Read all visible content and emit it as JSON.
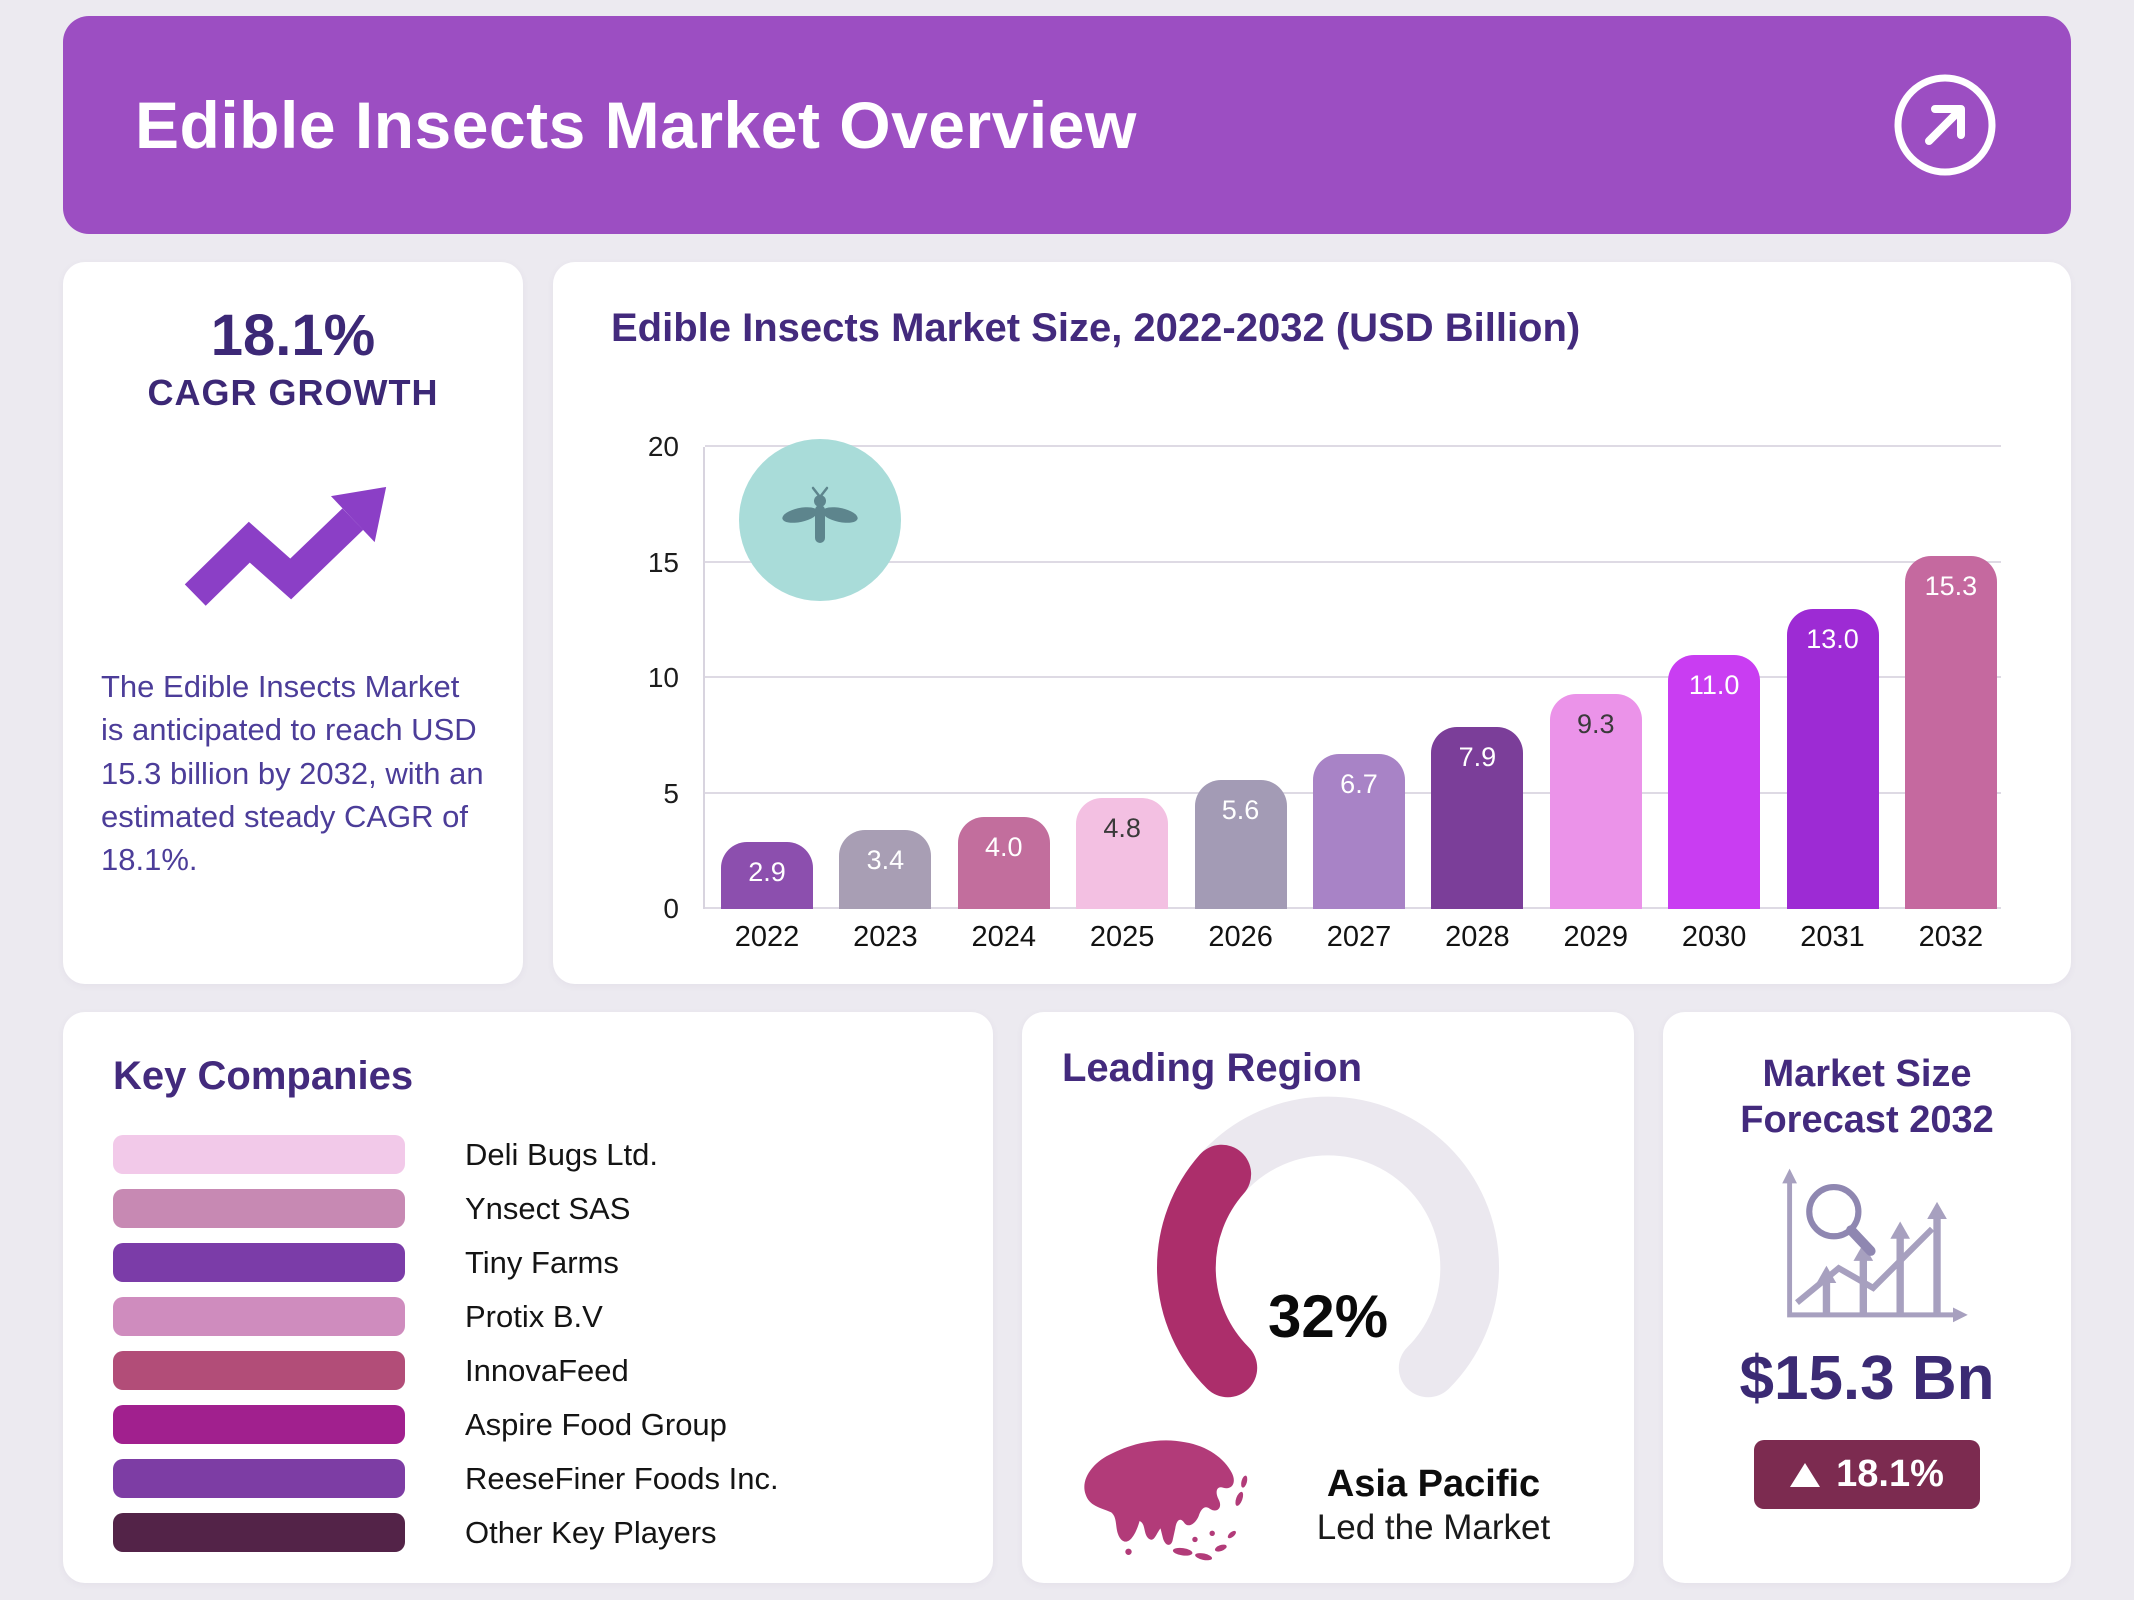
{
  "header": {
    "title": "Edible Insects Market Overview",
    "brand_color": "#9c4ec2",
    "action_icon": "arrow-up-right-icon"
  },
  "cagr_card": {
    "value": "18.1%",
    "label": "CAGR GROWTH",
    "accent_color": "#8b3fc6",
    "trend_icon": "trend-up-arrow-icon",
    "description": "The Edible Insects Market is anticipated to reach USD 15.3 billion by 2032, with an estimated steady CAGR of 18.1%."
  },
  "chart_card": {
    "title": "Edible Insects Market Size, 2022-2032 (USD Billion)",
    "insect_icon": "insect-icon"
  },
  "chart_data": {
    "type": "bar",
    "title": "Edible Insects Market Size, 2022-2032 (USD Billion)",
    "categories": [
      "2022",
      "2023",
      "2024",
      "2025",
      "2026",
      "2027",
      "2028",
      "2029",
      "2030",
      "2031",
      "2032"
    ],
    "values": [
      2.9,
      3.4,
      4.0,
      4.8,
      5.6,
      6.7,
      7.9,
      9.3,
      11.0,
      13.0,
      15.3
    ],
    "value_labels": [
      "2.9",
      "3.4",
      "4.0",
      "4.8",
      "5.6",
      "6.7",
      "7.9",
      "9.3",
      "11.0",
      "13.0",
      "15.3"
    ],
    "bar_colors": [
      "#8c4fae",
      "#a89eb4",
      "#c26e9d",
      "#f3c0e2",
      "#a39bb5",
      "#a883c6",
      "#7b3e99",
      "#eb93e9",
      "#c93df2",
      "#9d2bd4",
      "#c5699f"
    ],
    "value_label_colors": [
      "#ffffff",
      "#ffffff",
      "#ffffff",
      "#3a3a3a",
      "#ffffff",
      "#ffffff",
      "#ffffff",
      "#3a3a3a",
      "#ffffff",
      "#ffffff",
      "#ffffff"
    ],
    "xlabel": "",
    "ylabel": "",
    "ylim": [
      0,
      20
    ],
    "yticks": [
      0,
      5,
      10,
      15,
      20
    ],
    "grid": true,
    "legend": false
  },
  "key_companies": {
    "title": "Key Companies",
    "items": [
      {
        "name": "Deli Bugs Ltd.",
        "color": "#f2c9e9"
      },
      {
        "name": "Ynsect SAS",
        "color": "#c789b3"
      },
      {
        "name": "Tiny Farms",
        "color": "#7b3ca8"
      },
      {
        "name": "Protix B.V",
        "color": "#cf8cbe"
      },
      {
        "name": "InnovaFeed",
        "color": "#b24d78"
      },
      {
        "name": "Aspire Food Group",
        "color": "#a1208e"
      },
      {
        "name": "ReeseFiner Foods Inc.",
        "color": "#7d3da4"
      },
      {
        "name": "Other Key Players",
        "color": "#532348"
      }
    ]
  },
  "leading_region": {
    "title": "Leading Region",
    "percent_value": 32,
    "percent_label": "32%",
    "region": "Asia Pacific",
    "subtitle": "Led the Market",
    "gauge_color": "#ac2e6b",
    "gauge_track_color": "#ebe8ef",
    "map_color": "#b23b79",
    "map_icon": "asia-map-icon"
  },
  "forecast_card": {
    "title": "Market Size Forecast 2032",
    "value": "$15.3 Bn",
    "growth": "18.1%",
    "badge_color": "#7c2b50",
    "icon": "chart-magnifier-icon"
  }
}
